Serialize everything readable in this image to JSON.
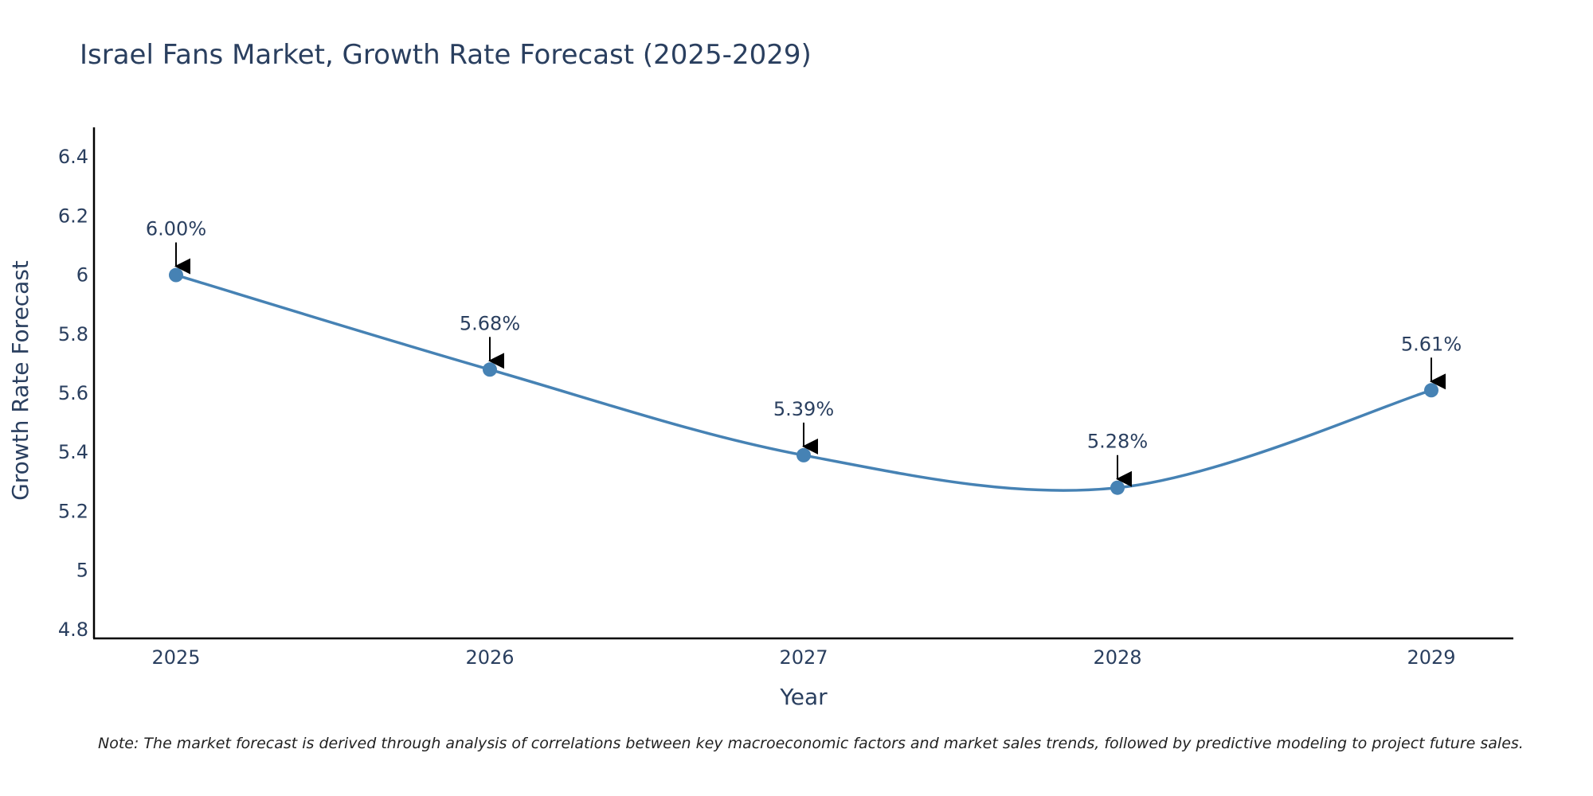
{
  "colors": {
    "line": "#4682B4",
    "marker": "#4682B4",
    "axis": "#000000",
    "text": "#2a3f5f",
    "arrow": "#000000"
  },
  "chart_data": {
    "type": "line",
    "title": "Israel Fans Market, Growth Rate Forecast (2025-2029)",
    "xlabel": "Year",
    "ylabel": "Growth Rate Forecast",
    "categories": [
      "2025",
      "2026",
      "2027",
      "2028",
      "2029"
    ],
    "series": [
      {
        "name": "Growth Rate Forecast",
        "values": [
          6.0,
          5.68,
          5.39,
          5.28,
          5.61
        ]
      }
    ],
    "data_labels": [
      "6.00%",
      "5.68%",
      "5.39%",
      "5.28%",
      "5.61%"
    ],
    "ylim": [
      4.77,
      6.5
    ],
    "yticks": [
      4.8,
      5,
      5.2,
      5.4,
      5.6,
      5.8,
      6,
      6.2,
      6.4
    ],
    "ytick_labels": [
      "4.8",
      "5",
      "5.2",
      "5.4",
      "5.6",
      "5.8",
      "6",
      "6.2",
      "6.4"
    ],
    "grid": false,
    "line_shape": "spline"
  },
  "note": "Note: The market forecast is derived through analysis of correlations between key macroeconomic factors and market sales trends, followed by predictive modeling to project future sales."
}
